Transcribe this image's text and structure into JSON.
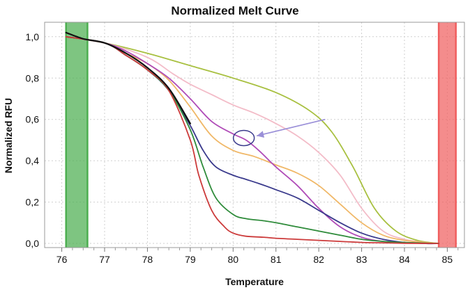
{
  "chart_data": {
    "type": "line",
    "title": "Normalized Melt Curve",
    "xlabel": "Temperature",
    "ylabel": "Normalized RFU",
    "xlim": [
      75.6,
      85.4
    ],
    "ylim": [
      -0.02,
      1.07
    ],
    "xticks": [
      "76",
      "77",
      "78",
      "79",
      "80",
      "81",
      "82",
      "83",
      "84",
      "85"
    ],
    "yticks": [
      "0,0",
      "0,2",
      "0,4",
      "0,6",
      "0,8",
      "1,0"
    ],
    "grid": true,
    "melt_regions": [
      {
        "x": [
          76.1,
          76.6
        ],
        "color": "#4caf50"
      },
      {
        "x": [
          84.8,
          85.2
        ],
        "color": "#f06060"
      }
    ],
    "annotation": {
      "type": "circle-with-arrow",
      "at": [
        80.25,
        0.51
      ],
      "from": [
        82.15,
        0.6
      ],
      "color": "#9a8fd8"
    },
    "series": [
      {
        "color": "#a8c040",
        "x": [
          76.1,
          77,
          78,
          79,
          80,
          81,
          81.8,
          82.3,
          82.8,
          83.3,
          83.8,
          84.3,
          84.8
        ],
        "y": [
          1.0,
          0.97,
          0.92,
          0.86,
          0.8,
          0.73,
          0.64,
          0.54,
          0.37,
          0.17,
          0.06,
          0.015,
          0.0
        ]
      },
      {
        "color": "#f3bcc8",
        "x": [
          76.1,
          77,
          78,
          78.6,
          79,
          79.5,
          80,
          80.5,
          81,
          81.5,
          82,
          82.5,
          83,
          83.5,
          84,
          84.5,
          84.8
        ],
        "y": [
          1.0,
          0.97,
          0.9,
          0.82,
          0.77,
          0.72,
          0.67,
          0.63,
          0.58,
          0.52,
          0.44,
          0.33,
          0.17,
          0.06,
          0.02,
          0.005,
          0.0
        ]
      },
      {
        "color": "#f0b868",
        "x": [
          76.1,
          77,
          77.5,
          78,
          78.5,
          79,
          79.5,
          80,
          80.5,
          81,
          81.5,
          82,
          82.5,
          83,
          83.5,
          84,
          84.5,
          84.8
        ],
        "y": [
          1.0,
          0.97,
          0.92,
          0.87,
          0.79,
          0.66,
          0.52,
          0.45,
          0.42,
          0.38,
          0.34,
          0.28,
          0.19,
          0.1,
          0.04,
          0.015,
          0.005,
          0.0
        ]
      },
      {
        "color": "#b04cb8",
        "x": [
          76.1,
          77,
          77.5,
          78,
          78.5,
          79,
          79.5,
          80,
          80.3,
          80.6,
          81,
          81.5,
          82,
          82.5,
          83,
          83.5,
          84,
          84.5,
          84.8
        ],
        "y": [
          1.0,
          0.97,
          0.93,
          0.87,
          0.8,
          0.7,
          0.59,
          0.53,
          0.5,
          0.45,
          0.37,
          0.28,
          0.17,
          0.08,
          0.03,
          0.01,
          0.005,
          0.0,
          0.0
        ]
      },
      {
        "color": "#3a3a8c",
        "x": [
          76.1,
          77,
          77.5,
          78,
          78.5,
          79,
          79.3,
          79.6,
          80,
          80.3,
          80.6,
          81,
          81.5,
          82,
          82.5,
          83,
          83.5,
          84,
          84.5,
          84.8
        ],
        "y": [
          1.0,
          0.97,
          0.91,
          0.84,
          0.74,
          0.57,
          0.45,
          0.37,
          0.33,
          0.31,
          0.29,
          0.26,
          0.22,
          0.16,
          0.1,
          0.05,
          0.02,
          0.005,
          0.0,
          0.0
        ]
      },
      {
        "color": "#2e8b3a",
        "x": [
          76.1,
          77,
          77.5,
          78,
          78.5,
          79,
          79.3,
          79.6,
          80,
          80.3,
          80.7,
          81,
          81.5,
          82,
          82.5,
          83,
          83.5,
          84,
          84.8
        ],
        "y": [
          1.0,
          0.97,
          0.91,
          0.84,
          0.74,
          0.55,
          0.37,
          0.22,
          0.14,
          0.12,
          0.11,
          0.1,
          0.08,
          0.06,
          0.04,
          0.02,
          0.01,
          0.005,
          0.0
        ]
      },
      {
        "color": "#cc3a3a",
        "x": [
          76.1,
          77,
          77.5,
          78,
          78.5,
          79,
          79.2,
          79.5,
          79.8,
          80,
          80.3,
          80.7,
          81,
          81.5,
          82,
          82.5,
          83,
          83.5,
          84,
          84.8
        ],
        "y": [
          1.0,
          0.97,
          0.91,
          0.84,
          0.74,
          0.5,
          0.33,
          0.16,
          0.08,
          0.05,
          0.035,
          0.03,
          0.025,
          0.02,
          0.015,
          0.01,
          0.005,
          0.003,
          0.001,
          0.0
        ]
      },
      {
        "color": "#111111",
        "x": [
          76.1,
          76.5,
          77,
          77.5,
          78,
          78.5,
          79
        ],
        "y": [
          1.02,
          0.99,
          0.97,
          0.92,
          0.85,
          0.75,
          0.58
        ]
      }
    ]
  }
}
